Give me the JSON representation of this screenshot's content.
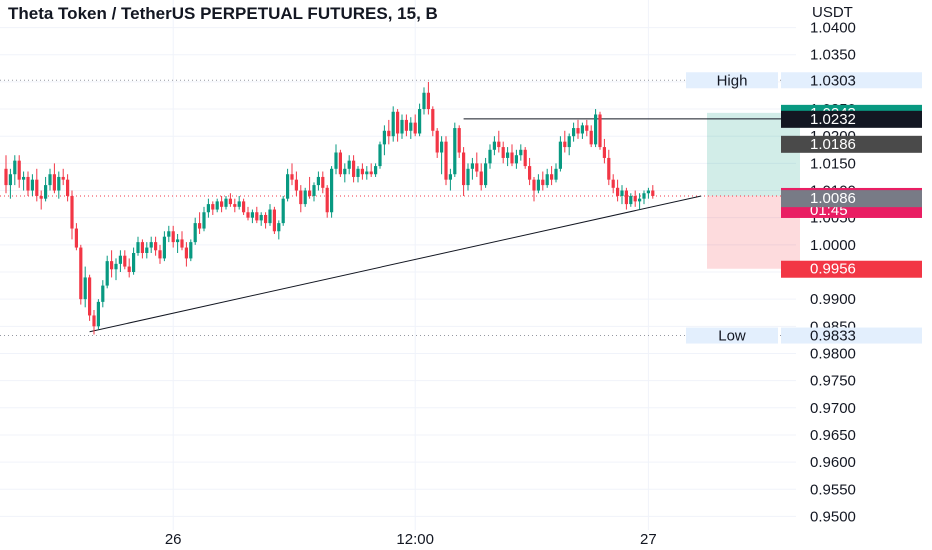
{
  "chart_data": {
    "type": "candlestick",
    "title": "Theta Token / TetherUS PERPETUAL FUTURES, 15, B",
    "currency": "USDT",
    "ylim": [
      0.9475,
      1.0425
    ],
    "y_ticks": [
      1.04,
      1.035,
      1.03,
      1.025,
      1.02,
      1.015,
      1.01,
      1.005,
      1.0,
      0.995,
      0.99,
      0.985,
      0.98,
      0.975,
      0.97,
      0.965,
      0.96,
      0.955,
      0.95
    ],
    "y_tick_labels": [
      "1.0400",
      "1.0350",
      "1.0300",
      "1.0250",
      "1.0200",
      "1.0150",
      "1.0100",
      "1.0050",
      "1.0000",
      "0.9950",
      "0.9900",
      "0.9850",
      "0.9800",
      "0.9750",
      "0.9700",
      "0.9650",
      "0.9600",
      "0.9550",
      "0.9500"
    ],
    "x_labels": [
      {
        "text": "26",
        "index": 38
      },
      {
        "text": "12:00",
        "index": 93
      },
      {
        "text": "27",
        "index": 146
      }
    ],
    "grid": true,
    "colors": {
      "up": "#089981",
      "down": "#f23645",
      "text": "#131722",
      "grid": "#f0f3fa"
    },
    "candles": [
      [
        1.014,
        1.0165,
        1.0095,
        1.011
      ],
      [
        1.011,
        1.014,
        1.0085,
        1.013
      ],
      [
        1.013,
        1.0165,
        1.011,
        1.0155
      ],
      [
        1.0155,
        1.0165,
        1.0105,
        1.012
      ],
      [
        1.012,
        1.0135,
        1.01,
        1.0125
      ],
      [
        1.0125,
        1.0135,
        1.009,
        1.01
      ],
      [
        1.01,
        1.013,
        1.009,
        1.012
      ],
      [
        1.012,
        1.014,
        1.008,
        1.009
      ],
      [
        1.009,
        1.01,
        1.0065,
        1.0085
      ],
      [
        1.0085,
        1.0125,
        1.008,
        1.011
      ],
      [
        1.011,
        1.014,
        1.01,
        1.013
      ],
      [
        1.013,
        1.015,
        1.0095,
        1.01
      ],
      [
        1.01,
        1.0135,
        1.0085,
        1.0125
      ],
      [
        1.0125,
        1.014,
        1.011,
        1.012
      ],
      [
        1.012,
        1.013,
        1.008,
        1.009
      ],
      [
        1.009,
        1.01,
        1.001,
        1.003
      ],
      [
        1.003,
        1.004,
        0.999,
        0.9995
      ],
      [
        0.9995,
        1.0,
        0.989,
        0.99
      ],
      [
        0.99,
        0.996,
        0.9885,
        0.994
      ],
      [
        0.994,
        0.9945,
        0.986,
        0.987
      ],
      [
        0.987,
        0.988,
        0.9835,
        0.985
      ],
      [
        0.985,
        0.99,
        0.9845,
        0.9895
      ],
      [
        0.9895,
        0.9935,
        0.9885,
        0.9925
      ],
      [
        0.9925,
        0.998,
        0.992,
        0.997
      ],
      [
        0.997,
        0.999,
        0.994,
        0.9955
      ],
      [
        0.9955,
        0.9975,
        0.9935,
        0.9965
      ],
      [
        0.9965,
        0.999,
        0.995,
        0.998
      ],
      [
        0.998,
        0.999,
        0.9955,
        0.996
      ],
      [
        0.996,
        0.9975,
        0.994,
        0.995
      ],
      [
        0.995,
        0.9995,
        0.9945,
        0.9985
      ],
      [
        0.9985,
        1.0015,
        0.998,
        1.0005
      ],
      [
        1.0005,
        1.001,
        0.9975,
        0.9985
      ],
      [
        0.9985,
        1.0005,
        0.9975,
        0.9995
      ],
      [
        0.9995,
        1.0015,
        0.9985,
        1.0005
      ],
      [
        1.0005,
        1.0015,
        0.998,
        0.999
      ],
      [
        0.999,
        1.0,
        0.9965,
        0.9975
      ],
      [
        0.9975,
        1.0025,
        0.997,
        1.0015
      ],
      [
        1.0015,
        1.0035,
        1.0005,
        1.0025
      ],
      [
        1.0025,
        1.0035,
        0.9995,
        1.0005
      ],
      [
        1.0005,
        1.002,
        0.9985,
        1.001
      ],
      [
        1.001,
        1.0025,
        0.999,
        0.9995
      ],
      [
        0.9995,
        1.0005,
        0.996,
        0.9975
      ],
      [
        0.9975,
        1.001,
        0.997,
        1.0005
      ],
      [
        1.0005,
        1.005,
        1.0,
        1.004
      ],
      [
        1.004,
        1.006,
        1.002,
        1.003
      ],
      [
        1.003,
        1.007,
        1.0025,
        1.006
      ],
      [
        1.006,
        1.0085,
        1.005,
        1.0075
      ],
      [
        1.0075,
        1.008,
        1.0055,
        1.0065
      ],
      [
        1.0065,
        1.0085,
        1.006,
        1.008
      ],
      [
        1.008,
        1.009,
        1.006,
        1.007
      ],
      [
        1.007,
        1.009,
        1.0065,
        1.0085
      ],
      [
        1.0085,
        1.0095,
        1.007,
        1.0075
      ],
      [
        1.0075,
        1.0085,
        1.006,
        1.007
      ],
      [
        1.007,
        1.009,
        1.0065,
        1.008
      ],
      [
        1.008,
        1.0085,
        1.0055,
        1.006
      ],
      [
        1.006,
        1.007,
        1.0045,
        1.005
      ],
      [
        1.005,
        1.0065,
        1.004,
        1.006
      ],
      [
        1.006,
        1.007,
        1.004,
        1.0045
      ],
      [
        1.0045,
        1.006,
        1.0035,
        1.0055
      ],
      [
        1.0055,
        1.006,
        1.003,
        1.004
      ],
      [
        1.004,
        1.0075,
        1.0035,
        1.0065
      ],
      [
        1.0065,
        1.007,
        1.002,
        1.0025
      ],
      [
        1.0025,
        1.0045,
        1.001,
        1.004
      ],
      [
        1.004,
        1.009,
        1.0035,
        1.0085
      ],
      [
        1.0085,
        1.014,
        1.008,
        1.013
      ],
      [
        1.013,
        1.015,
        1.011,
        1.012
      ],
      [
        1.012,
        1.0135,
        1.009,
        1.01
      ],
      [
        1.01,
        1.011,
        1.006,
        1.0075
      ],
      [
        1.0075,
        1.0105,
        1.007,
        1.01
      ],
      [
        1.01,
        1.0125,
        1.0085,
        1.009
      ],
      [
        1.009,
        1.0115,
        1.008,
        1.011
      ],
      [
        1.011,
        1.0135,
        1.01,
        1.0125
      ],
      [
        1.0125,
        1.0135,
        1.0095,
        1.0105
      ],
      [
        1.0105,
        1.011,
        1.005,
        1.006
      ],
      [
        1.006,
        1.0145,
        1.005,
        1.014
      ],
      [
        1.014,
        1.0185,
        1.013,
        1.017
      ],
      [
        1.017,
        1.0175,
        1.0125,
        1.013
      ],
      [
        1.013,
        1.015,
        1.0115,
        1.014
      ],
      [
        1.014,
        1.0165,
        1.013,
        1.0155
      ],
      [
        1.0155,
        1.0165,
        1.0115,
        1.0125
      ],
      [
        1.0125,
        1.0145,
        1.0115,
        1.014
      ],
      [
        1.014,
        1.015,
        1.012,
        1.013
      ],
      [
        1.013,
        1.0145,
        1.012,
        1.0135
      ],
      [
        1.0135,
        1.015,
        1.0125,
        1.013
      ],
      [
        1.013,
        1.015,
        1.0125,
        1.0145
      ],
      [
        1.0145,
        1.019,
        1.014,
        1.0185
      ],
      [
        1.0185,
        1.022,
        1.0165,
        1.021
      ],
      [
        1.021,
        1.023,
        1.0185,
        1.02
      ],
      [
        1.02,
        1.0255,
        1.019,
        1.0245
      ],
      [
        1.0245,
        1.025,
        1.019,
        1.0205
      ],
      [
        1.0205,
        1.024,
        1.0195,
        1.023
      ],
      [
        1.023,
        1.024,
        1.02,
        1.021
      ],
      [
        1.021,
        1.0235,
        1.0195,
        1.0225
      ],
      [
        1.0225,
        1.024,
        1.02,
        1.0205
      ],
      [
        1.0205,
        1.026,
        1.02,
        1.025
      ],
      [
        1.025,
        1.029,
        1.024,
        1.028
      ],
      [
        1.028,
        1.03,
        1.024,
        1.025
      ],
      [
        1.025,
        1.0255,
        1.02,
        1.021
      ],
      [
        1.021,
        1.0215,
        1.016,
        1.017
      ],
      [
        1.017,
        1.02,
        1.013,
        1.019
      ],
      [
        1.019,
        1.02,
        1.011,
        1.012
      ],
      [
        1.012,
        1.014,
        1.01,
        1.013
      ],
      [
        1.013,
        1.0225,
        1.0125,
        1.0215
      ],
      [
        1.0215,
        1.022,
        1.016,
        1.017
      ],
      [
        1.017,
        1.018,
        1.009,
        1.011
      ],
      [
        1.011,
        1.015,
        1.01,
        1.014
      ],
      [
        1.014,
        1.016,
        1.012,
        1.015
      ],
      [
        1.015,
        1.017,
        1.0125,
        1.0135
      ],
      [
        1.0135,
        1.015,
        1.01,
        1.011
      ],
      [
        1.011,
        1.016,
        1.0105,
        1.015
      ],
      [
        1.015,
        1.0185,
        1.014,
        1.0175
      ],
      [
        1.0175,
        1.02,
        1.0165,
        1.019
      ],
      [
        1.019,
        1.021,
        1.017,
        1.018
      ],
      [
        1.018,
        1.019,
        1.015,
        1.016
      ],
      [
        1.016,
        1.018,
        1.0145,
        1.017
      ],
      [
        1.017,
        1.0185,
        1.0145,
        1.015
      ],
      [
        1.015,
        1.0175,
        1.014,
        1.0165
      ],
      [
        1.0165,
        1.0185,
        1.0155,
        1.0175
      ],
      [
        1.0175,
        1.018,
        1.014,
        1.0145
      ],
      [
        1.0145,
        1.016,
        1.011,
        1.012
      ],
      [
        1.012,
        1.0125,
        1.008,
        1.01
      ],
      [
        1.01,
        1.013,
        1.0095,
        1.012
      ],
      [
        1.012,
        1.0135,
        1.01,
        1.011
      ],
      [
        1.011,
        1.014,
        1.0105,
        1.013
      ],
      [
        1.013,
        1.0145,
        1.011,
        1.012
      ],
      [
        1.012,
        1.015,
        1.0115,
        1.014
      ],
      [
        1.014,
        1.02,
        1.0135,
        1.019
      ],
      [
        1.019,
        1.021,
        1.017,
        1.018
      ],
      [
        1.018,
        1.0205,
        1.0165,
        1.02
      ],
      [
        1.02,
        1.0225,
        1.019,
        1.0215
      ],
      [
        1.0215,
        1.023,
        1.0195,
        1.0205
      ],
      [
        1.0205,
        1.0225,
        1.0195,
        1.022
      ],
      [
        1.022,
        1.023,
        1.02,
        1.021
      ],
      [
        1.021,
        1.022,
        1.018,
        1.0185
      ],
      [
        1.0185,
        1.025,
        1.018,
        1.024
      ],
      [
        1.024,
        1.0245,
        1.0175,
        1.018
      ],
      [
        1.018,
        1.0195,
        1.015,
        1.016
      ],
      [
        1.016,
        1.0175,
        1.011,
        1.012
      ],
      [
        1.012,
        1.013,
        1.0095,
        1.0105
      ],
      [
        1.0105,
        1.012,
        1.008,
        1.009
      ],
      [
        1.009,
        1.011,
        1.0075,
        1.01
      ],
      [
        1.01,
        1.0105,
        1.0065,
        1.0075
      ],
      [
        1.0075,
        1.0095,
        1.007,
        1.009
      ],
      [
        1.009,
        1.01,
        1.007,
        1.008
      ],
      [
        1.008,
        1.0095,
        1.0065,
        1.0085
      ],
      [
        1.0085,
        1.01,
        1.0075,
        1.0095
      ],
      [
        1.0095,
        1.0105,
        1.0085,
        1.01
      ],
      [
        1.01,
        1.011,
        1.0085,
        1.009
      ]
    ],
    "levels": {
      "high": {
        "label": "High",
        "value": 1.0303
      },
      "low": {
        "label": "Low",
        "value": 0.9833
      }
    },
    "trendline": {
      "from": {
        "index": 19,
        "price": 0.984
      },
      "to": {
        "index": 158,
        "price": 1.009
      }
    },
    "resistance": {
      "from_index": 104,
      "price": 1.0232
    },
    "position": {
      "target": 1.0243,
      "entry": 1.009,
      "stop": 0.9956
    },
    "price_tags": [
      {
        "label": "High",
        "value": "1.0303",
        "price": 1.0303,
        "kind": "level"
      },
      {
        "value": "1.0243",
        "price": 1.0243,
        "bg": "#089981",
        "fg": "#ffffff"
      },
      {
        "value": "1.0232",
        "price": 1.0232,
        "bg": "#131722",
        "fg": "#ffffff"
      },
      {
        "value": "1.0186",
        "price": 1.0186,
        "bg": "#4a4a4a",
        "fg": "#ffffff"
      },
      {
        "value": "1.0090",
        "sub": "01:45",
        "price": 1.009,
        "bg": "#e91e63",
        "fg": "#ffffff"
      },
      {
        "value": "1.0086",
        "price": 1.0086,
        "bg": "#787b86",
        "fg": "#ffffff"
      },
      {
        "value": "0.9956",
        "price": 0.9956,
        "bg": "#f23645",
        "fg": "#ffffff"
      },
      {
        "label": "Low",
        "value": "0.9833",
        "price": 0.9833,
        "kind": "level"
      }
    ]
  }
}
